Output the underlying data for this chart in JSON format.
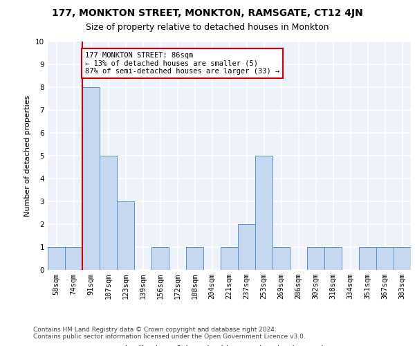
{
  "title1": "177, MONKTON STREET, MONKTON, RAMSGATE, CT12 4JN",
  "title2": "Size of property relative to detached houses in Monkton",
  "xlabel": "Distribution of detached houses by size in Monkton",
  "ylabel": "Number of detached properties",
  "categories": [
    "58sqm",
    "74sqm",
    "91sqm",
    "107sqm",
    "123sqm",
    "139sqm",
    "156sqm",
    "172sqm",
    "188sqm",
    "204sqm",
    "221sqm",
    "237sqm",
    "253sqm",
    "269sqm",
    "286sqm",
    "302sqm",
    "318sqm",
    "334sqm",
    "351sqm",
    "367sqm",
    "383sqm"
  ],
  "values": [
    1,
    1,
    8,
    5,
    3,
    0,
    1,
    0,
    1,
    0,
    1,
    2,
    5,
    1,
    0,
    1,
    1,
    0,
    1,
    1,
    1
  ],
  "bar_color": "#c5d8f0",
  "bar_edge_color": "#5b8dd4",
  "annotation_box_text": "177 MONKTON STREET: 86sqm\n← 13% of detached houses are smaller (5)\n87% of semi-detached houses are larger (33) →",
  "vline_color": "#cc0000",
  "vline_x_index": 2,
  "ylim": [
    0,
    10
  ],
  "yticks": [
    0,
    1,
    2,
    3,
    4,
    5,
    6,
    7,
    8,
    9,
    10
  ],
  "footer1": "Contains HM Land Registry data © Crown copyright and database right 2024.",
  "footer2": "Contains public sector information licensed under the Open Government Licence v3.0.",
  "background_color": "#eef2fb",
  "grid_color": "#ffffff",
  "title1_fontsize": 10,
  "title2_fontsize": 9,
  "xlabel_fontsize": 9,
  "ylabel_fontsize": 8,
  "tick_fontsize": 7.5,
  "annotation_fontsize": 7.5,
  "footer_fontsize": 6.5
}
